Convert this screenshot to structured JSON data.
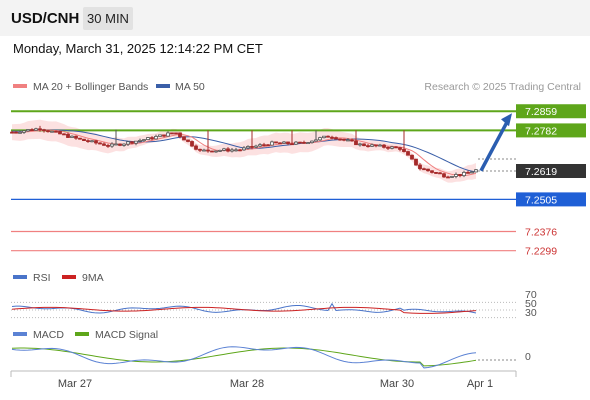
{
  "header": {
    "pair": "USD/CNH",
    "timeframe": "30 MIN",
    "datetime": "Monday, March 31, 2025 12:14:22 PM CET"
  },
  "legend": {
    "ma20_label": "MA 20 + Bollinger Bands",
    "ma50_label": "MA 50",
    "credit": "Research © 2025 Trading Central",
    "rsi_label": "RSI",
    "rsi_ma_label": "9MA",
    "macd_label": "MACD",
    "macd_signal_label": "MACD Signal"
  },
  "colors": {
    "ma20": "#f08080",
    "ma50": "#3a5fa8",
    "bands": "#fcdede",
    "resistance": "#5ea61a",
    "support": "#1f5fd6",
    "pivot": "#f08080",
    "up_candle": "#555555",
    "down_candle": "#a52a2a",
    "arrow": "#2a5db0",
    "rsi": "#4a74c9",
    "rsi_ma": "#cc2222",
    "macd": "#5b82d4",
    "macd_signal": "#5ea61a"
  },
  "chart_data": {
    "type": "candlestick",
    "x_ticks": [
      "Mar 27",
      "Mar 28",
      "Mar 30",
      "Apr 1"
    ],
    "price_levels": [
      {
        "value": 7.2859,
        "label": "7.2859",
        "kind": "resistance"
      },
      {
        "value": 7.2782,
        "label": "7.2782",
        "kind": "resistance"
      },
      {
        "value": 7.2619,
        "label": "7.2619",
        "kind": "last"
      },
      {
        "value": 7.2505,
        "label": "7.2505",
        "kind": "support"
      },
      {
        "value": 7.2376,
        "label": "7.2376",
        "kind": "pivot"
      },
      {
        "value": 7.2299,
        "label": "7.2299",
        "kind": "pivot"
      }
    ],
    "projection": {
      "from": 7.262,
      "to": 7.2859,
      "direction": "up"
    },
    "rsi": {
      "levels": [
        70,
        50,
        30
      ],
      "level_labels": [
        "70",
        "50",
        "30"
      ]
    },
    "macd": {
      "zero_label": "0"
    }
  }
}
